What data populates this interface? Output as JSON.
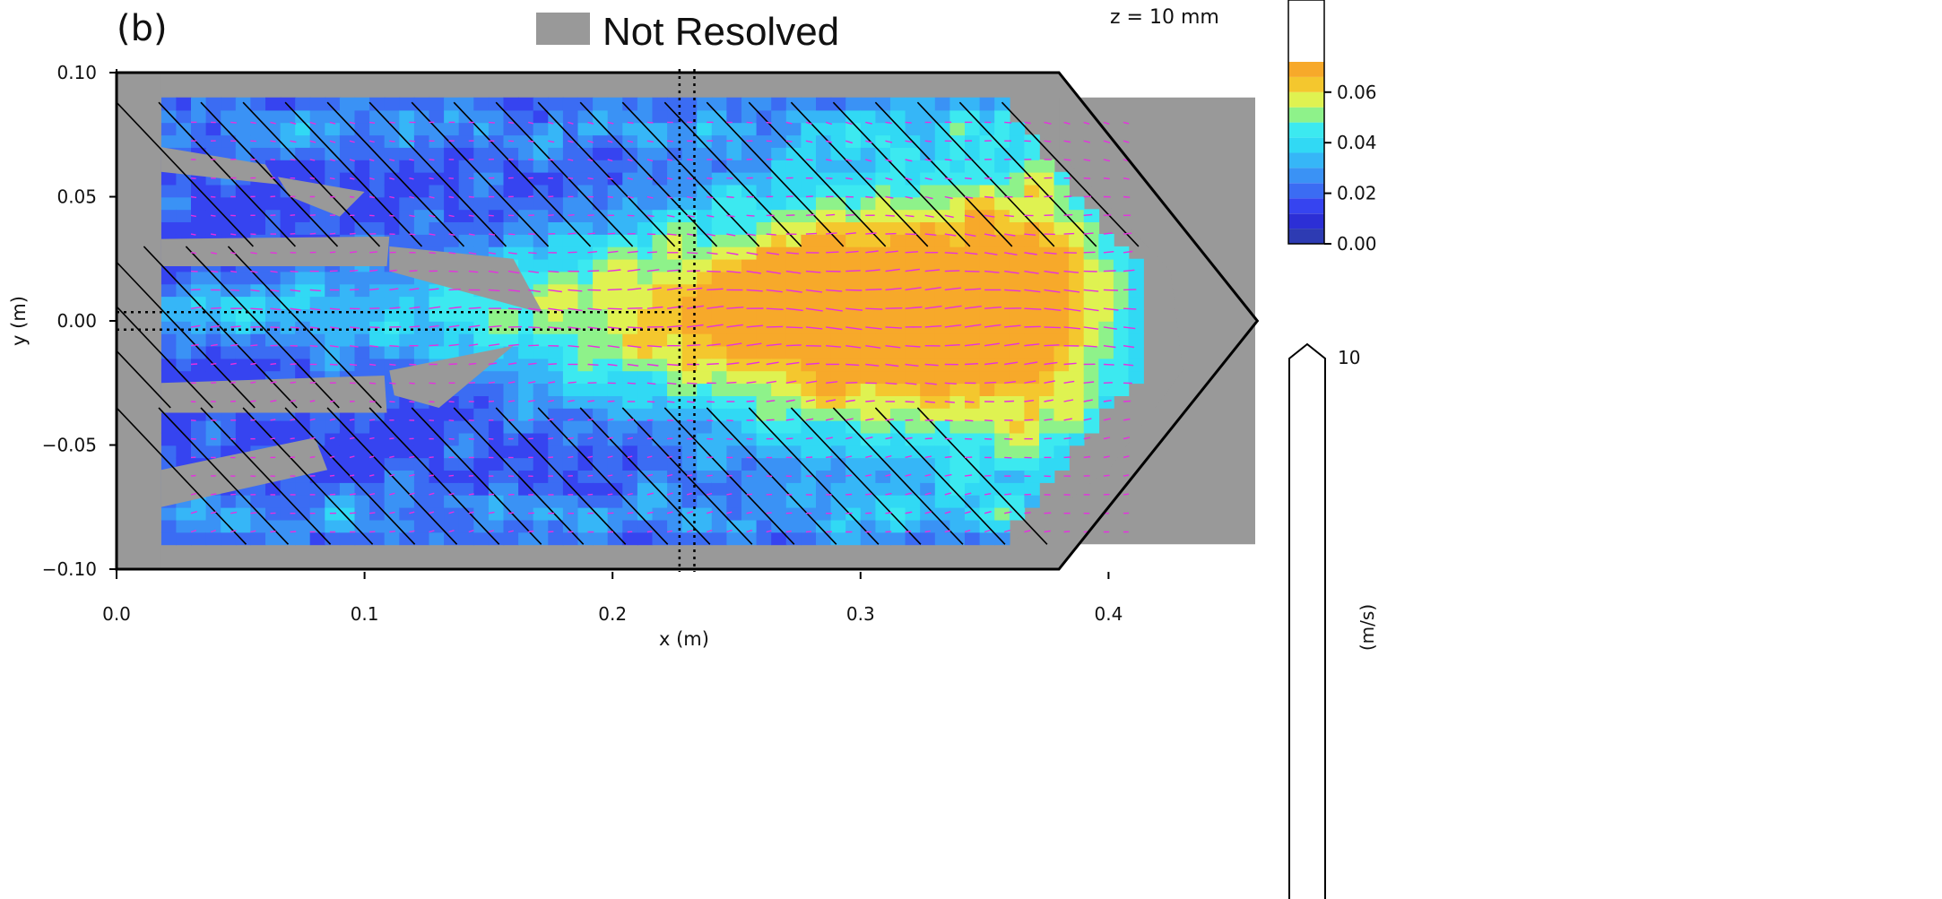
{
  "panel_label": "(b)",
  "legend": {
    "swatch_label": "Not Resolved",
    "swatch_color": "#999999"
  },
  "z_label": "z = 10 mm",
  "chart_data": {
    "type": "heatmap",
    "xlabel": "x (m)",
    "ylabel": "y (m)",
    "xlim": [
      0.0,
      0.46
    ],
    "ylim": [
      -0.1,
      0.1
    ],
    "x_ticks": [
      0.0,
      0.1,
      0.2,
      0.3,
      0.4
    ],
    "x_tick_labels": [
      "0.0",
      "0.1",
      "0.2",
      "0.3",
      "0.4"
    ],
    "y_ticks": [
      0.1,
      0.05,
      0.0,
      -0.05,
      -0.1
    ],
    "y_tick_labels": [
      "0.10",
      "0.05",
      "0.00",
      "−0.05",
      "−0.10"
    ],
    "colorbar": {
      "ticks": [
        0.0,
        0.02,
        0.04,
        0.06
      ],
      "tick_labels": [
        "0.00",
        "0.02",
        "0.04",
        "0.06"
      ],
      "levels": [
        0.0,
        0.006,
        0.012,
        0.018,
        0.024,
        0.03,
        0.036,
        0.042,
        0.048,
        0.054,
        0.06,
        0.066
      ],
      "colors": [
        "#2d3bb3",
        "#2c2fd6",
        "#3644f0",
        "#3b6cf3",
        "#3a92f5",
        "#36b6f7",
        "#31d9f4",
        "#3ce9f0",
        "#8ef28a",
        "#dff251",
        "#f4c72e",
        "#f7a92a"
      ]
    },
    "quiver_key": {
      "label": "10",
      "unit_label": "(m/s)"
    },
    "domain_outline": [
      [
        0.0,
        0.1
      ],
      [
        0.38,
        0.1
      ],
      [
        0.46,
        0.0
      ],
      [
        0.38,
        -0.1
      ],
      [
        0.0,
        -0.1
      ]
    ],
    "measurement_window": {
      "x": [
        0.018,
        0.38
      ],
      "y": [
        -0.09,
        0.088
      ]
    },
    "dotted_lines": {
      "vertical_x": [
        0.227,
        0.233
      ],
      "horizontal_y": [
        0.0035,
        -0.0035
      ],
      "horizontal_x_end": 0.225
    },
    "jet_core": {
      "description_values": "speed hotspot centered near x=0.29, y=0.01",
      "peak_speed": 0.065
    }
  }
}
